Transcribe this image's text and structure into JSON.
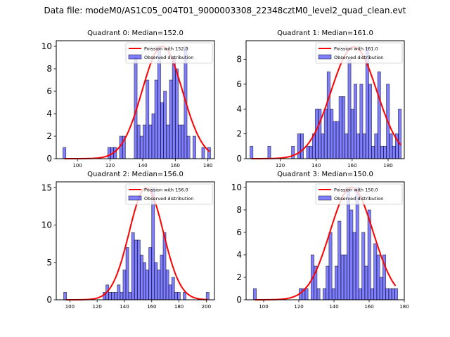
{
  "figure": {
    "suptitle": "Data file: modeM0/AS1C05_004T01_9000003308_22348cztM0_level2_quad_clean.evt"
  },
  "chart_data": [
    {
      "type": "bar",
      "title": "Quadrant 0: Median=152.0",
      "xlim": [
        87,
        184
      ],
      "ylim": [
        0,
        10.5
      ],
      "xticks": [
        100,
        120,
        140,
        160,
        180
      ],
      "yticks": [
        0,
        2,
        4,
        6,
        8,
        10
      ],
      "bin_width": 1.8,
      "legend": [
        "Poission with 152.0",
        "Observed distribution"
      ],
      "legend_position": "top-right",
      "bins": [
        [
          92,
          1
        ],
        [
          119.5,
          1
        ],
        [
          121.3,
          1
        ],
        [
          123.1,
          1
        ],
        [
          126.7,
          2
        ],
        [
          128.5,
          2
        ],
        [
          135.7,
          9
        ],
        [
          137.5,
          3
        ],
        [
          139.3,
          2
        ],
        [
          141.1,
          3
        ],
        [
          142.9,
          7
        ],
        [
          144.7,
          3
        ],
        [
          146.5,
          4
        ],
        [
          148.3,
          7
        ],
        [
          150.1,
          10
        ],
        [
          151.9,
          5
        ],
        [
          153.7,
          6
        ],
        [
          155.5,
          3
        ],
        [
          157.3,
          7
        ],
        [
          159.1,
          9
        ],
        [
          160.9,
          8
        ],
        [
          162.7,
          3
        ],
        [
          164.5,
          3
        ],
        [
          166.3,
          10
        ],
        [
          168.1,
          2
        ],
        [
          171.7,
          2
        ],
        [
          177.1,
          1
        ],
        [
          180.7,
          1
        ]
      ],
      "poisson_mean": 152.0,
      "poisson_peak": 10,
      "poisson_range": [
        92,
        181
      ]
    },
    {
      "type": "bar",
      "title": "Quadrant 1: Median=161.0",
      "xlim": [
        101,
        189
      ],
      "ylim": [
        0,
        9.5
      ],
      "xticks": [
        100,
        120,
        140,
        160,
        180
      ],
      "yticks": [
        0,
        2,
        4,
        6,
        8
      ],
      "bin_width": 1.65,
      "legend": [
        "Poission with 161.0",
        "Observed distribution"
      ],
      "legend_position": "top-right",
      "bins": [
        [
          104,
          1
        ],
        [
          113.9,
          1
        ],
        [
          127.1,
          1
        ],
        [
          130.4,
          2
        ],
        [
          132.1,
          2
        ],
        [
          135.4,
          1
        ],
        [
          137,
          1
        ],
        [
          138.7,
          2
        ],
        [
          140.3,
          4
        ],
        [
          142,
          4
        ],
        [
          143.6,
          2
        ],
        [
          145.3,
          4
        ],
        [
          146.9,
          7
        ],
        [
          148.6,
          4
        ],
        [
          150.2,
          3
        ],
        [
          151.9,
          3
        ],
        [
          153.5,
          5
        ],
        [
          155.2,
          5
        ],
        [
          156.8,
          2
        ],
        [
          158.5,
          8
        ],
        [
          160.1,
          4
        ],
        [
          161.8,
          6
        ],
        [
          163.4,
          2
        ],
        [
          165.1,
          6
        ],
        [
          166.7,
          2
        ],
        [
          168.4,
          9
        ],
        [
          170,
          6
        ],
        [
          171.7,
          1
        ],
        [
          173.3,
          2
        ],
        [
          175,
          7
        ],
        [
          176.6,
          1
        ],
        [
          178.3,
          1
        ],
        [
          179.9,
          6
        ],
        [
          181.6,
          2
        ],
        [
          183.2,
          1
        ],
        [
          184.9,
          2
        ],
        [
          186.5,
          4
        ]
      ],
      "poisson_mean": 161.0,
      "poisson_peak": 9,
      "poisson_range": [
        104,
        187
      ]
    },
    {
      "type": "bar",
      "title": "Quadrant 2: Median=156.0",
      "xlim": [
        90,
        206
      ],
      "ylim": [
        0,
        15.8
      ],
      "xticks": [
        100,
        120,
        140,
        160,
        180,
        200
      ],
      "yticks": [
        0,
        5,
        10,
        15
      ],
      "bin_width": 2.1,
      "legend": [
        "Poission with 156.0",
        "Observed distribution"
      ],
      "legend_position": "top-right",
      "bins": [
        [
          96.5,
          1
        ],
        [
          125.3,
          1
        ],
        [
          127.4,
          2
        ],
        [
          129.5,
          1
        ],
        [
          131.6,
          1
        ],
        [
          133.7,
          1
        ],
        [
          135.8,
          2
        ],
        [
          137.9,
          1
        ],
        [
          140,
          4
        ],
        [
          142.1,
          7
        ],
        [
          144.2,
          1
        ],
        [
          146.3,
          9
        ],
        [
          148.4,
          8
        ],
        [
          150.5,
          8
        ],
        [
          152.6,
          6
        ],
        [
          154.7,
          5
        ],
        [
          156.8,
          4
        ],
        [
          158.9,
          7
        ],
        [
          161,
          15
        ],
        [
          163.1,
          5
        ],
        [
          165.2,
          4
        ],
        [
          167.3,
          6
        ],
        [
          169.4,
          9
        ],
        [
          171.5,
          4
        ],
        [
          173.6,
          2
        ],
        [
          175.7,
          3
        ],
        [
          177.8,
          1
        ],
        [
          179.9,
          1
        ],
        [
          184.1,
          1
        ],
        [
          201,
          1
        ]
      ],
      "poisson_mean": 156.0,
      "poisson_peak": 15,
      "poisson_range": [
        97,
        201
      ]
    },
    {
      "type": "bar",
      "title": "Quadrant 3: Median=150.0",
      "xlim": [
        90,
        180
      ],
      "ylim": [
        0,
        10.5
      ],
      "xticks": [
        100,
        120,
        140,
        160,
        180
      ],
      "yticks": [
        0,
        2,
        4,
        6,
        8,
        10
      ],
      "bin_width": 1.72,
      "legend": [
        "Poission with 150.0",
        "Observed distribution"
      ],
      "legend_position": "top-right",
      "bins": [
        [
          95,
          1
        ],
        [
          121,
          1
        ],
        [
          122.7,
          1
        ],
        [
          124.4,
          1
        ],
        [
          127.8,
          4
        ],
        [
          129.5,
          3
        ],
        [
          131.2,
          1
        ],
        [
          134.6,
          1
        ],
        [
          136.3,
          3
        ],
        [
          138,
          6
        ],
        [
          139.7,
          1
        ],
        [
          141.4,
          3
        ],
        [
          143.1,
          7
        ],
        [
          144.8,
          4
        ],
        [
          146.5,
          4
        ],
        [
          148.2,
          10
        ],
        [
          149.9,
          8
        ],
        [
          151.6,
          6
        ],
        [
          153.3,
          10
        ],
        [
          155,
          1
        ],
        [
          156.7,
          6
        ],
        [
          158.4,
          3
        ],
        [
          160.1,
          8
        ],
        [
          161.8,
          1
        ],
        [
          163.5,
          5
        ],
        [
          165.2,
          4
        ],
        [
          166.9,
          2
        ],
        [
          168.6,
          4
        ],
        [
          170.3,
          1
        ],
        [
          172,
          1
        ],
        [
          173.7,
          1
        ],
        [
          175.4,
          1
        ]
      ],
      "poisson_mean": 150.0,
      "poisson_peak": 10,
      "poisson_range": [
        95,
        175
      ]
    }
  ]
}
